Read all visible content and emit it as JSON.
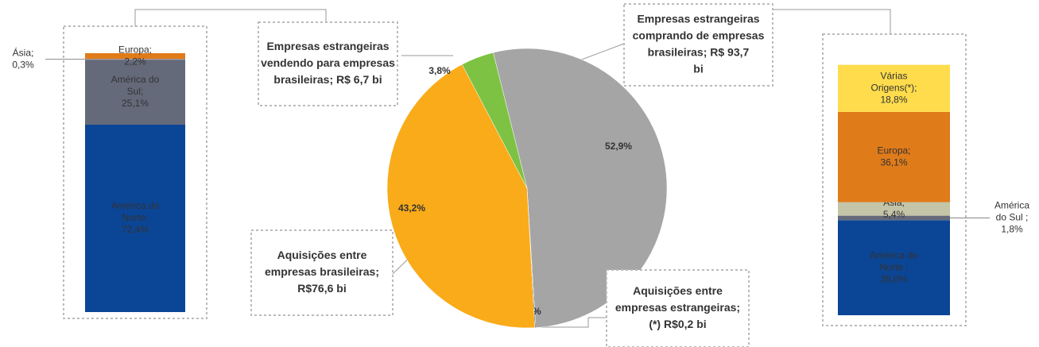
{
  "chart_data": [
    {
      "type": "stacked-bar",
      "ylim": [
        0,
        100
      ],
      "series": [
        {
          "name": "América do Norte;",
          "color": "#0b4595",
          "values": [
            72.4
          ],
          "value_labels": [
            "72,4%"
          ]
        },
        {
          "name": "América do Sul;",
          "color": "#646a7a",
          "values": [
            25.1
          ],
          "value_labels": [
            "25,1%"
          ]
        },
        {
          "name": "Ásia;",
          "color": "#8f93a0",
          "values": [
            0.3
          ],
          "value_labels": [
            "0,3%"
          ]
        },
        {
          "name": "Europa;",
          "color": "#e07b1a",
          "values": [
            2.2
          ],
          "value_labels": [
            "2,2%"
          ]
        }
      ]
    },
    {
      "type": "pie",
      "categories": [
        "Empresas estrangeiras comprando de empresas brasileiras; R$ 93,7 bi",
        "Aquisições entre empresas estrangeiras; (*) R$0,2 bi",
        "Aquisições entre empresas brasileiras; R$76,6 bi",
        "Empresas estrangeiras vendendo para empresas brasileiras; R$ 6,7 bi"
      ],
      "values": [
        52.9,
        0.1,
        43.2,
        3.8
      ],
      "value_labels": [
        "52,9%",
        "0,1%",
        "43,2%",
        "3,8%"
      ],
      "colors": [
        "#a5a5a5",
        "#1f3864",
        "#f9ab19",
        "#7dc242"
      ]
    },
    {
      "type": "stacked-bar",
      "ylim": [
        0,
        100
      ],
      "series": [
        {
          "name": "América do Norte ;",
          "color": "#0b4595",
          "values": [
            38.0
          ],
          "value_labels": [
            "38,0%"
          ]
        },
        {
          "name": "América do Sul ;",
          "color": "#646a7a",
          "values": [
            1.8
          ],
          "value_labels": [
            "1,8%"
          ]
        },
        {
          "name": "Ásia;",
          "color": "#c4c4a8",
          "values": [
            5.4
          ],
          "value_labels": [
            "5,4%"
          ]
        },
        {
          "name": "Europa;",
          "color": "#e07b1a",
          "values": [
            36.1
          ],
          "value_labels": [
            "36,1%"
          ]
        },
        {
          "name": "Várias Origens(*);",
          "color": "#fedc4c",
          "values": [
            18.8
          ],
          "value_labels": [
            "18,8%"
          ]
        }
      ]
    }
  ]
}
